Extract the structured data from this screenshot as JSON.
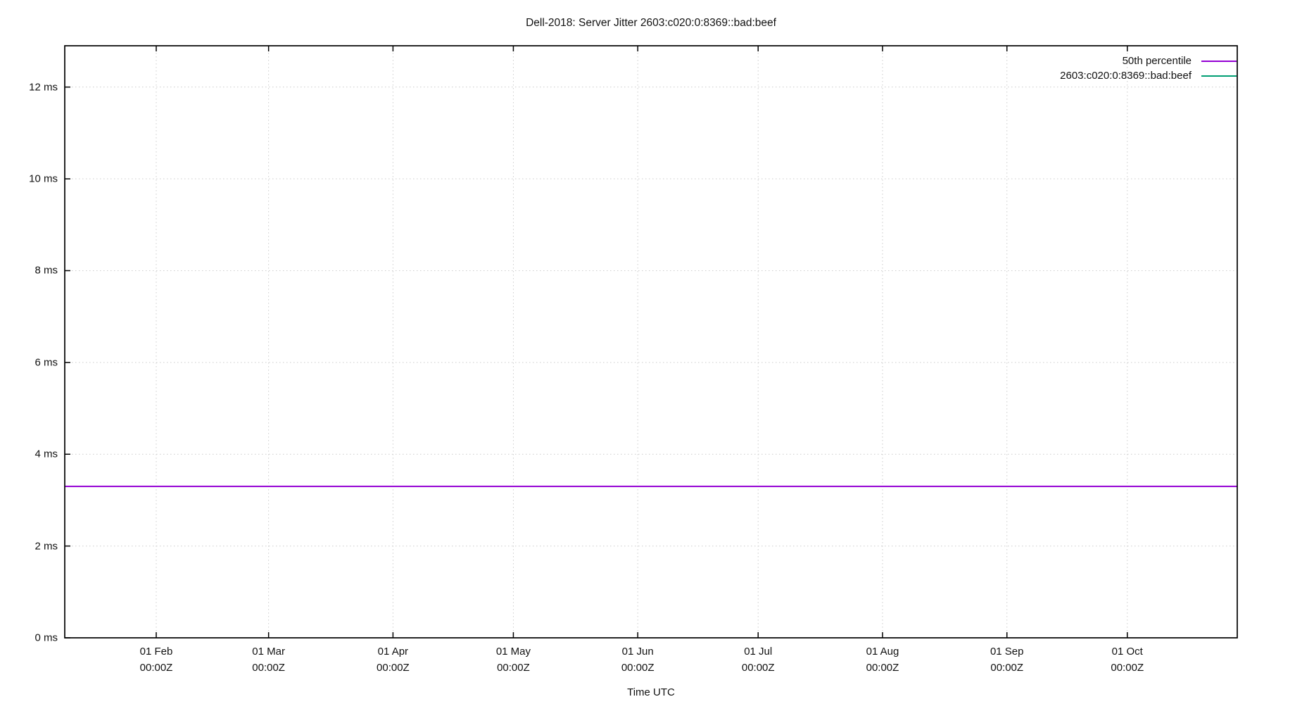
{
  "title": "Dell-2018: Server Jitter 2603:c020:0:8369::bad:beef",
  "colors": {
    "background": "#ffffff",
    "plot_border": "#000000",
    "grid": "#cccccc",
    "text": "#111111",
    "series_50th_percentile": "#9400d3",
    "series_host": "#009e73"
  },
  "chart_data": {
    "type": "line",
    "title": "Dell-2018: Server Jitter 2603:c020:0:8369::bad:beef",
    "grid": "dotted",
    "legend_position": "top-right-inside",
    "x_axis": {
      "label": "Time UTC",
      "range_day_of_year": [
        8.2,
        300.4
      ],
      "ticks": [
        {
          "day_of_year": 31,
          "line1": "01 Feb",
          "line2": "00:00Z"
        },
        {
          "day_of_year": 59,
          "line1": "01 Mar",
          "line2": "00:00Z"
        },
        {
          "day_of_year": 90,
          "line1": "01 Apr",
          "line2": "00:00Z"
        },
        {
          "day_of_year": 120,
          "line1": "01 May",
          "line2": "00:00Z"
        },
        {
          "day_of_year": 151,
          "line1": "01 Jun",
          "line2": "00:00Z"
        },
        {
          "day_of_year": 181,
          "line1": "01 Jul",
          "line2": "00:00Z"
        },
        {
          "day_of_year": 212,
          "line1": "01 Aug",
          "line2": "00:00Z"
        },
        {
          "day_of_year": 243,
          "line1": "01 Sep",
          "line2": "00:00Z"
        },
        {
          "day_of_year": 273,
          "line1": "01 Oct",
          "line2": "00:00Z"
        }
      ]
    },
    "y_axis": {
      "unit": "ms",
      "range_ms": [
        0,
        12.9
      ],
      "ticks": [
        {
          "value": 0,
          "label": "0 ms"
        },
        {
          "value": 2,
          "label": "2 ms"
        },
        {
          "value": 4,
          "label": "4 ms"
        },
        {
          "value": 6,
          "label": "6 ms"
        },
        {
          "value": 8,
          "label": "8 ms"
        },
        {
          "value": 10,
          "label": "10 ms"
        },
        {
          "value": 12,
          "label": "12 ms"
        }
      ]
    },
    "series": [
      {
        "name": "50th percentile",
        "color": "#9400d3",
        "style": "constant-line",
        "value_ms": 3.3
      },
      {
        "name": "2603:c020:0:8369::bad:beef",
        "color": "#009e73",
        "style": "constant-line",
        "value_ms": null
      }
    ]
  }
}
